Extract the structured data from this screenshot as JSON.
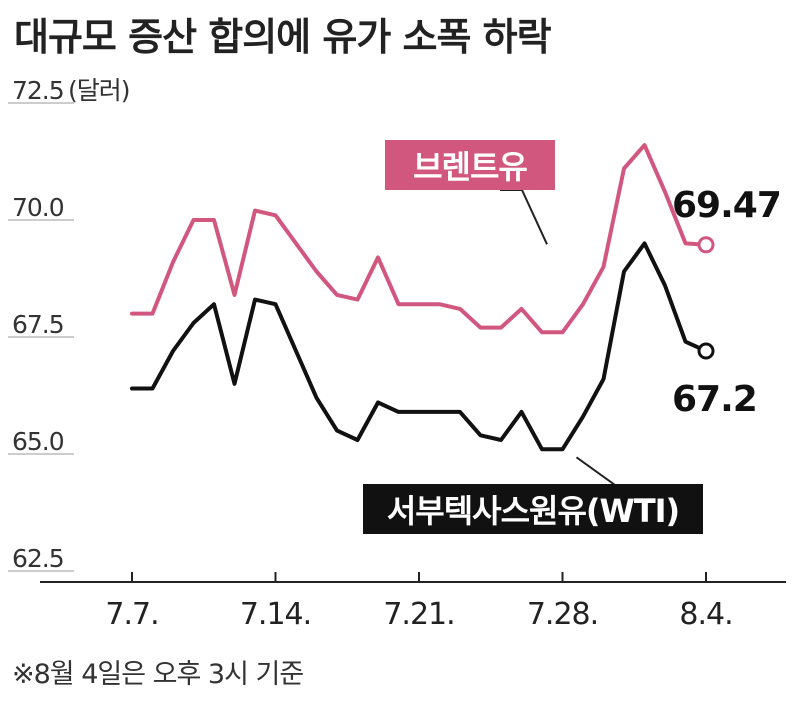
{
  "title": "대규모 증산 합의에 유가 소폭 하락",
  "unit_label": "(달러)",
  "note": "※8월 4일은 오후 3시 기준",
  "chart_data": {
    "type": "line",
    "ylim": [
      62.5,
      72.5
    ],
    "y_ticks": [
      {
        "value": 72.5,
        "label": "72.5"
      },
      {
        "value": 70.0,
        "label": "70.0"
      },
      {
        "value": 67.5,
        "label": "67.5"
      },
      {
        "value": 65.0,
        "label": "65.0"
      },
      {
        "value": 62.5,
        "label": "62.5"
      }
    ],
    "x_start": "2025-07-07",
    "x_end": "2025-08-05",
    "x_ticks": [
      {
        "date": "2025-07-07",
        "label": "7.7."
      },
      {
        "date": "2025-07-14",
        "label": "7.14."
      },
      {
        "date": "2025-07-21",
        "label": "7.21."
      },
      {
        "date": "2025-07-28",
        "label": "7.28."
      },
      {
        "date": "2025-08-04",
        "label": "8.4."
      }
    ],
    "series": [
      {
        "name": "브렌트유",
        "color": "#d2577f",
        "points": [
          [
            "2025-07-07",
            68.0
          ],
          [
            "2025-07-08",
            68.0
          ],
          [
            "2025-07-09",
            69.1
          ],
          [
            "2025-07-10",
            70.0
          ],
          [
            "2025-07-11",
            70.0
          ],
          [
            "2025-07-12",
            68.4
          ],
          [
            "2025-07-13",
            70.2
          ],
          [
            "2025-07-14",
            70.1
          ],
          [
            "2025-07-15",
            69.5
          ],
          [
            "2025-07-16",
            68.9
          ],
          [
            "2025-07-17",
            68.4
          ],
          [
            "2025-07-18",
            68.3
          ],
          [
            "2025-07-19",
            69.2
          ],
          [
            "2025-07-20",
            68.2
          ],
          [
            "2025-07-21",
            68.2
          ],
          [
            "2025-07-22",
            68.2
          ],
          [
            "2025-07-23",
            68.1
          ],
          [
            "2025-07-24",
            67.7
          ],
          [
            "2025-07-25",
            67.7
          ],
          [
            "2025-07-26",
            68.1
          ],
          [
            "2025-07-27",
            67.6
          ],
          [
            "2025-07-28",
            67.6
          ],
          [
            "2025-07-29",
            68.2
          ],
          [
            "2025-07-30",
            69.0
          ],
          [
            "2025-07-31",
            71.1
          ],
          [
            "2025-08-01",
            71.6
          ],
          [
            "2025-08-02",
            70.6
          ],
          [
            "2025-08-03",
            69.5
          ],
          [
            "2025-08-04",
            69.47
          ]
        ]
      },
      {
        "name": "서부텍사스원유(WTI)",
        "color": "#111111",
        "points": [
          [
            "2025-07-07",
            66.4
          ],
          [
            "2025-07-08",
            66.4
          ],
          [
            "2025-07-09",
            67.2
          ],
          [
            "2025-07-10",
            67.8
          ],
          [
            "2025-07-11",
            68.2
          ],
          [
            "2025-07-12",
            66.5
          ],
          [
            "2025-07-13",
            68.3
          ],
          [
            "2025-07-14",
            68.2
          ],
          [
            "2025-07-15",
            67.2
          ],
          [
            "2025-07-16",
            66.2
          ],
          [
            "2025-07-17",
            65.5
          ],
          [
            "2025-07-18",
            65.3
          ],
          [
            "2025-07-19",
            66.1
          ],
          [
            "2025-07-20",
            65.9
          ],
          [
            "2025-07-21",
            65.9
          ],
          [
            "2025-07-22",
            65.9
          ],
          [
            "2025-07-23",
            65.9
          ],
          [
            "2025-07-24",
            65.4
          ],
          [
            "2025-07-25",
            65.3
          ],
          [
            "2025-07-26",
            65.9
          ],
          [
            "2025-07-27",
            65.1
          ],
          [
            "2025-07-28",
            65.1
          ],
          [
            "2025-07-29",
            65.8
          ],
          [
            "2025-07-30",
            66.6
          ],
          [
            "2025-07-31",
            68.9
          ],
          [
            "2025-08-01",
            69.5
          ],
          [
            "2025-08-02",
            68.6
          ],
          [
            "2025-08-03",
            67.4
          ],
          [
            "2025-08-04",
            67.2
          ]
        ]
      }
    ],
    "end_labels": [
      "69.47",
      "67.2"
    ]
  }
}
